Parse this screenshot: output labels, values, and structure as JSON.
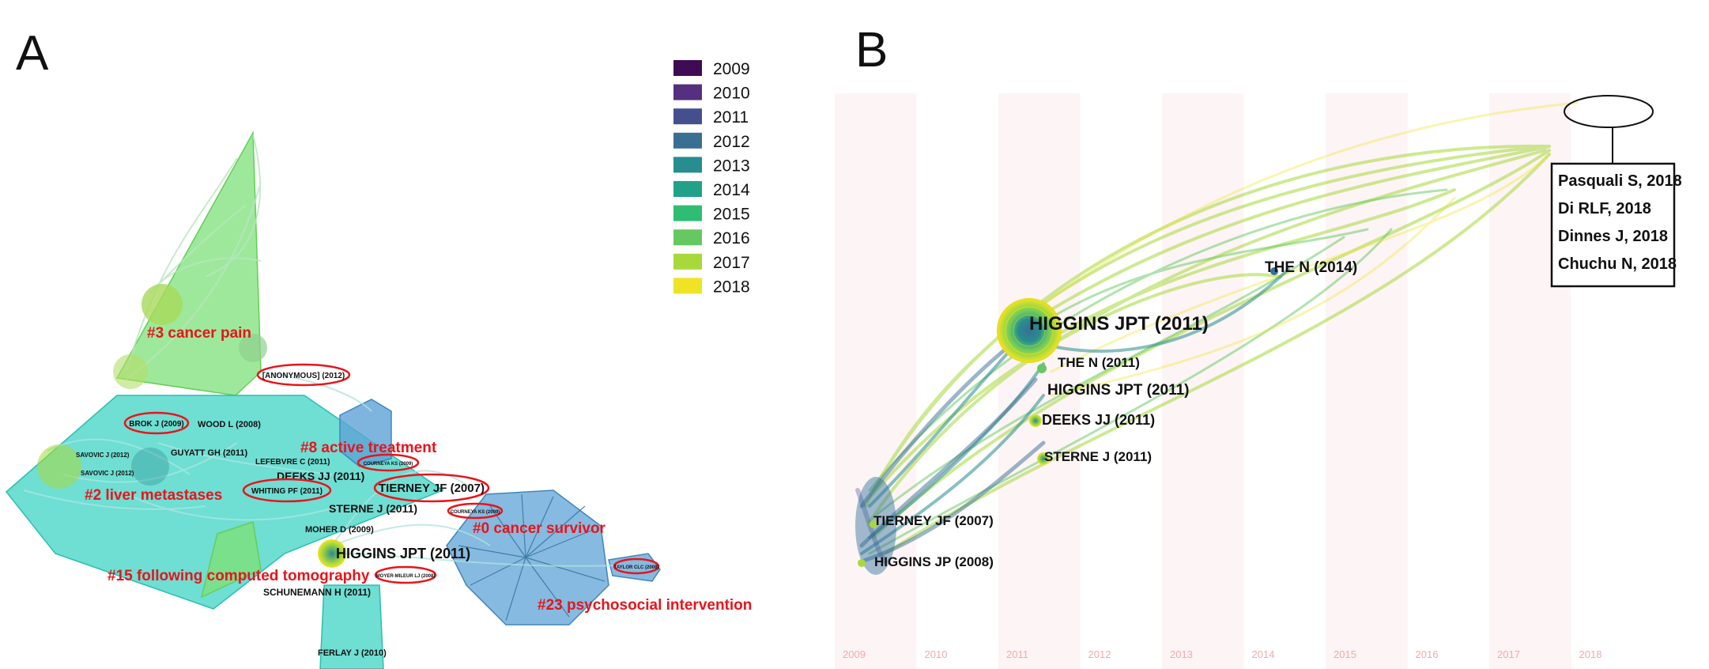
{
  "panel_a": {
    "letter": "A",
    "legend": [
      {
        "year": "2009",
        "color": "#3f0b55"
      },
      {
        "year": "2010",
        "color": "#54307f"
      },
      {
        "year": "2011",
        "color": "#44508e"
      },
      {
        "year": "2012",
        "color": "#3a6f94"
      },
      {
        "year": "2013",
        "color": "#278d8f"
      },
      {
        "year": "2014",
        "color": "#22a18a"
      },
      {
        "year": "2015",
        "color": "#2fbd71"
      },
      {
        "year": "2016",
        "color": "#66c860"
      },
      {
        "year": "2017",
        "color": "#a7d93c"
      },
      {
        "year": "2018",
        "color": "#f0e325"
      }
    ],
    "clusters": {
      "cancer_pain": "#3 cancer pain",
      "liver_metastases": "#2 liver metastases",
      "active_treatment": "#8 active treatment",
      "cancer_survivor": "#0 cancer survivor",
      "computed_tomography": "#15 following computed tomography",
      "psychosocial_intervention": "#23 psychosocial intervention"
    },
    "nodes": {
      "anonymous": "[ANONYMOUS] (2012)",
      "brok": "BROK J (2009)",
      "wood": "WOOD L (2008)",
      "savovic_1": "SAVOVIC J (2012)",
      "savovic_2": "SAVOVIC J (2012)",
      "guyatt": "GUYATT GH (2011)",
      "lefebvre": "LEFEBVRE C (2011)",
      "courneya_1": "COURNEYA KS (2009)",
      "deeks": "DEEKS JJ (2011)",
      "whiting": "WHITING PF (2011)",
      "tierney": "TIERNEY JF (2007)",
      "sterne": "STERNE J (2011)",
      "courneya_2": "COURNEYA KS (2009)",
      "moher": "MOHER D (2009)",
      "higgins_jpt": "HIGGINS JPT (2011)",
      "mishra": "MOYER-MILEUR LJ (2008)",
      "schunemann": "SCHUNEMANN H (2011)",
      "taylor": "TAYLOR CLC (2008)",
      "ferlay": "FERLAY J (2010)"
    }
  },
  "panel_b": {
    "letter": "B",
    "years": [
      "2009",
      "2010",
      "2011",
      "2012",
      "2013",
      "2014",
      "2015",
      "2016",
      "2017",
      "2018"
    ],
    "nodes": {
      "higgins_big": "HIGGINS JPT (2011)",
      "the_n_2014": "THE N (2014)",
      "the_n_2011": "THE N (2011)",
      "higgins_small": "HIGGINS JPT (2011)",
      "deeks": "DEEKS JJ (2011)",
      "sterne": "STERNE J (2011)",
      "tierney": "TIERNEY JF (2007)",
      "higgins_jp": "HIGGINS JP (2008)"
    },
    "callout": [
      "Pasquali S, 2018",
      "Di RLF, 2018",
      "Dinnes J, 2018",
      "Chuchu N, 2018"
    ]
  }
}
